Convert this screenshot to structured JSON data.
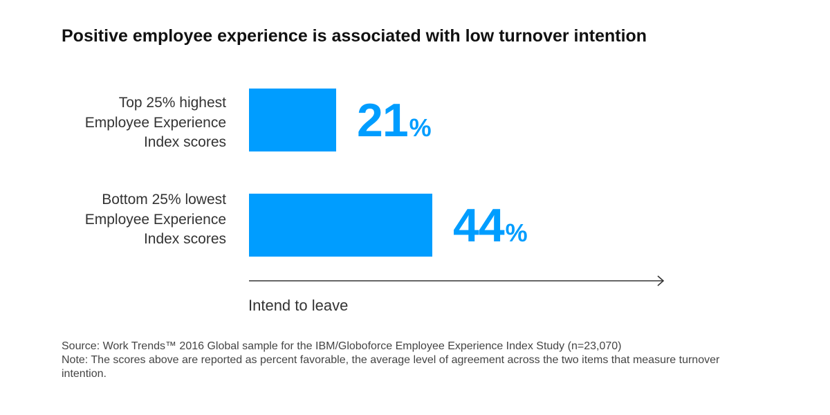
{
  "title": "Positive employee experience is associated with low turnover intention",
  "chart_data": {
    "type": "bar",
    "orientation": "horizontal",
    "title": "Positive employee experience is associated with low turnover intention",
    "categories": [
      [
        "Top 25% highest",
        "Employee Experience",
        "Index scores"
      ],
      [
        "Bottom 25% lowest",
        "Employee Experience",
        "Index scores"
      ]
    ],
    "values": [
      21,
      44
    ],
    "value_labels": [
      "21",
      "44"
    ],
    "value_suffix": "%",
    "xlabel": "Intend to leave",
    "bar_color": "#009dff",
    "grid": false
  },
  "footer": {
    "source": "Source: Work Trends™ 2016 Global sample for the IBM/Globoforce Employee Experience Index Study (n=23,070)",
    "note": "Note: The scores above are reported as percent favorable, the average level of agreement across the two items that measure turnover intention."
  }
}
